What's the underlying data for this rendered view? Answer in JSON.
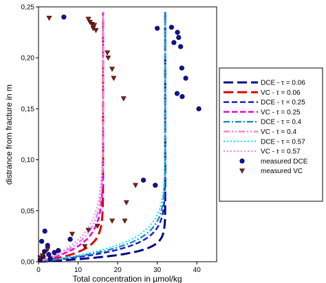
{
  "chart_data": {
    "type": "scatter",
    "title": "",
    "xlabel": "Total concentration in µmol/kg",
    "ylabel": "distrance from fracture in m",
    "xlim": [
      0,
      45
    ],
    "ylim": [
      0,
      0.25
    ],
    "x_ticks": [
      "0",
      "10",
      "20",
      "30",
      "40"
    ],
    "y_ticks": [
      "0,00",
      "0,05",
      "0,10",
      "0,15",
      "0,20",
      "0,25"
    ],
    "grid": false,
    "legend_position": "right",
    "series": [
      {
        "name": "DCE - τ = 0.06",
        "kind": "line",
        "color": "#00008B",
        "dash": "dash-long",
        "asymptote": 32,
        "shape": 0.02
      },
      {
        "name": "VC - τ = 0.06",
        "kind": "line",
        "color": "#E00000",
        "dash": "dash-long",
        "asymptote": 16.3,
        "shape": 0.03
      },
      {
        "name": "DCE - τ = 0.25",
        "kind": "line",
        "color": "#1C1CC8",
        "dash": "dash",
        "asymptote": 32,
        "shape": 0.036
      },
      {
        "name": "VC - τ = 0.25",
        "kind": "line",
        "color": "#E000E0",
        "dash": "dash",
        "asymptote": 16.3,
        "shape": 0.048
      },
      {
        "name": "DCE - τ = 0.4",
        "kind": "line",
        "color": "#1E90C8",
        "dash": "dash-dot",
        "asymptote": 32,
        "shape": 0.043
      },
      {
        "name": "VC - τ = 0.4",
        "kind": "line",
        "color": "#F080F0",
        "dash": "dash-dot-dot",
        "asymptote": 16.3,
        "shape": 0.058
      },
      {
        "name": "DCE - τ = 0.57",
        "kind": "line",
        "color": "#00E0F0",
        "dash": "dot",
        "asymptote": 32,
        "shape": 0.05
      },
      {
        "name": "VC - τ = 0.57",
        "kind": "line",
        "color": "#F080C0",
        "dash": "dot",
        "asymptote": 16.3,
        "shape": 0.068
      },
      {
        "name": "measured DCE",
        "kind": "points",
        "marker": "circle",
        "color": "#1010B0",
        "points": [
          [
            6.4,
            0.24
          ],
          [
            33.6,
            0.23
          ],
          [
            30,
            0.229
          ],
          [
            35.1,
            0.225
          ],
          [
            35.4,
            0.22
          ],
          [
            34.2,
            0.215
          ],
          [
            35.9,
            0.211
          ],
          [
            36.2,
            0.19
          ],
          [
            37.2,
            0.18
          ],
          [
            40.5,
            0.15
          ],
          [
            35,
            0.165
          ],
          [
            36.3,
            0.162
          ],
          [
            26.5,
            0.08
          ],
          [
            29.5,
            0.075
          ],
          [
            1.6,
            0.03
          ],
          [
            0.8,
            0.02
          ],
          [
            1.5,
            0.01
          ],
          [
            2.3,
            0.016
          ],
          [
            2.6,
            0.007
          ],
          [
            1.2,
            0.005
          ],
          [
            0.4,
            0.002
          ],
          [
            3,
            0.003
          ],
          [
            5,
            0.011
          ],
          [
            4,
            0.009
          ],
          [
            8,
            0.022
          ]
        ]
      },
      {
        "name": "measured VC",
        "kind": "points",
        "marker": "triangle-down",
        "color": "#8B1A1A",
        "points": [
          [
            2.7,
            0.239
          ],
          [
            12.6,
            0.238
          ],
          [
            13,
            0.235
          ],
          [
            13.5,
            0.233
          ],
          [
            14.1,
            0.232
          ],
          [
            13.8,
            0.229
          ],
          [
            14.5,
            0.227
          ],
          [
            17.4,
            0.205
          ],
          [
            17.6,
            0.2
          ],
          [
            18.6,
            0.189
          ],
          [
            19,
            0.18
          ],
          [
            21.5,
            0.16
          ],
          [
            24.5,
            0.075
          ],
          [
            22.2,
            0.058
          ],
          [
            21.8,
            0.04
          ],
          [
            18.6,
            0.04
          ],
          [
            14.9,
            0.035
          ],
          [
            12.6,
            0.031
          ],
          [
            11.7,
            0.015
          ],
          [
            8.5,
            0.027
          ],
          [
            2.3,
            0.012
          ],
          [
            0.4,
            0.004
          ],
          [
            1,
            0.006
          ]
        ]
      }
    ]
  }
}
